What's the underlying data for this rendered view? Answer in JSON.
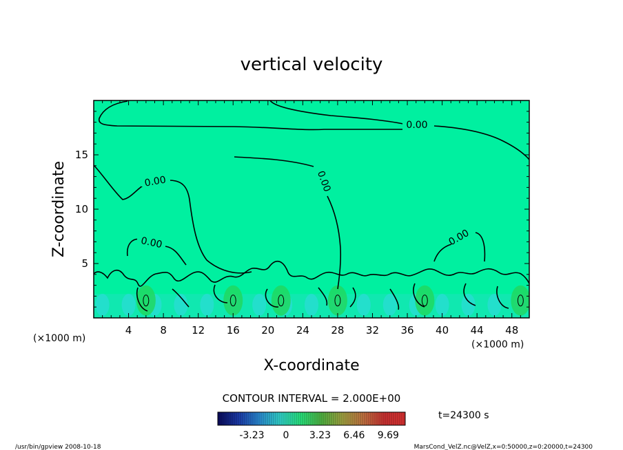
{
  "chart_data": {
    "type": "heatmap",
    "title": "vertical velocity",
    "xlabel": "X-coordinate",
    "ylabel": "Z-coordinate",
    "x_unit": "(×1000 m)",
    "y_unit": "(×1000 m)",
    "xlim": [
      0,
      50
    ],
    "ylim": [
      0,
      20
    ],
    "x_ticks": [
      4,
      8,
      12,
      16,
      20,
      24,
      28,
      32,
      36,
      40,
      44,
      48
    ],
    "y_ticks": [
      5,
      10,
      15
    ],
    "contour_interval_text": "CONTOUR INTERVAL = 2.000E+00",
    "contour_labels": [
      "0.00",
      "0.00",
      "0.00",
      "0.00",
      "0.00"
    ],
    "time_text": "t=24300 s",
    "colorbar": {
      "tick_labels": [
        "-3.23",
        "0",
        "3.23",
        "6.46",
        "9.69"
      ],
      "tick_values": [
        -3.23,
        0,
        3.23,
        6.46,
        9.69
      ],
      "range": [
        -6.46,
        11.3
      ],
      "colors": [
        "#0a0a5a",
        "#1a3aa8",
        "#2a8ad0",
        "#30d0c8",
        "#28e07a",
        "#50b040",
        "#a0a040",
        "#c07040",
        "#c83030",
        "#d83030"
      ]
    },
    "background_color": "#00f0a0",
    "updraft_centers_x": [
      6,
      16,
      21.5,
      28,
      38,
      49
    ],
    "footer_left": "/usr/bin/gpview   2008-10-18",
    "footer_right": "MarsCond_VelZ.nc@VelZ,x=0:50000,z=0:20000,t=24300"
  }
}
